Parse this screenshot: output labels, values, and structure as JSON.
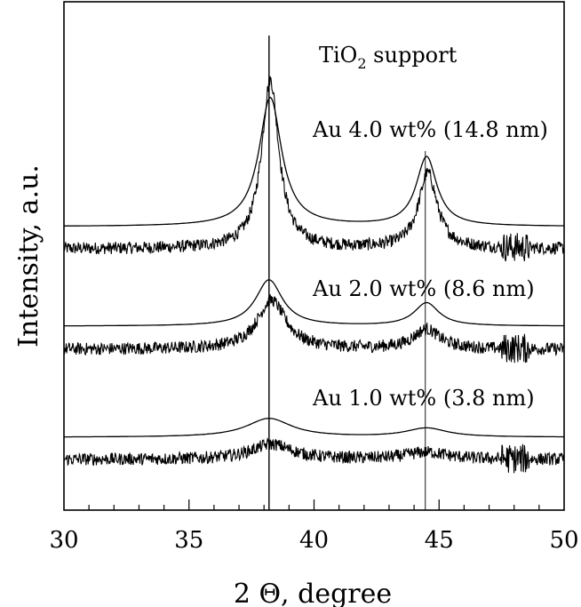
{
  "chart_data": {
    "type": "line",
    "title": "",
    "xlabel": "2 Θ, degree",
    "ylabel": "Intensity, a.u.",
    "xlim": [
      30,
      50
    ],
    "xticks": [
      30,
      35,
      40,
      45,
      50
    ],
    "yticks_shown": false,
    "grid": false,
    "reference_lines": [
      {
        "x": 38.2,
        "label": "TiO2 support"
      },
      {
        "x": 44.45
      }
    ],
    "annotations": [
      {
        "text": "Au 4.0 wt% (14.8 nm)"
      },
      {
        "text": "Au 2.0 wt% (8.6 nm)"
      },
      {
        "text": "Au 1.0 wt% (3.8 nm)"
      }
    ],
    "series": [
      {
        "kind": "fit",
        "offset": 255,
        "peaks": [
          {
            "x": 38.25,
            "amp": 145,
            "w": 0.55
          },
          {
            "x": 44.5,
            "amp": 78,
            "w": 0.5
          }
        ]
      },
      {
        "kind": "measured",
        "offset": 280,
        "peaks": [
          {
            "x": 38.25,
            "amp": 190,
            "w": 0.42
          },
          {
            "x": 44.55,
            "amp": 85,
            "w": 0.45
          }
        ],
        "noise": 7
      },
      {
        "kind": "fit",
        "offset": 367,
        "peaks": [
          {
            "x": 38.2,
            "amp": 52,
            "w": 0.65
          },
          {
            "x": 44.5,
            "amp": 26,
            "w": 0.6
          }
        ]
      },
      {
        "kind": "measured",
        "offset": 393,
        "peaks": [
          {
            "x": 38.3,
            "amp": 55,
            "w": 0.7
          },
          {
            "x": 44.5,
            "amp": 22,
            "w": 0.65
          }
        ],
        "noise": 7
      },
      {
        "kind": "fit",
        "offset": 492,
        "peaks": [
          {
            "x": 38.2,
            "amp": 21,
            "w": 1.1
          },
          {
            "x": 44.5,
            "amp": 10,
            "w": 1.0
          }
        ]
      },
      {
        "kind": "measured",
        "offset": 517,
        "peaks": [
          {
            "x": 38.3,
            "amp": 17,
            "w": 1.0
          },
          {
            "x": 44.5,
            "amp": 8,
            "w": 1.0
          }
        ],
        "noise": 7
      }
    ]
  }
}
